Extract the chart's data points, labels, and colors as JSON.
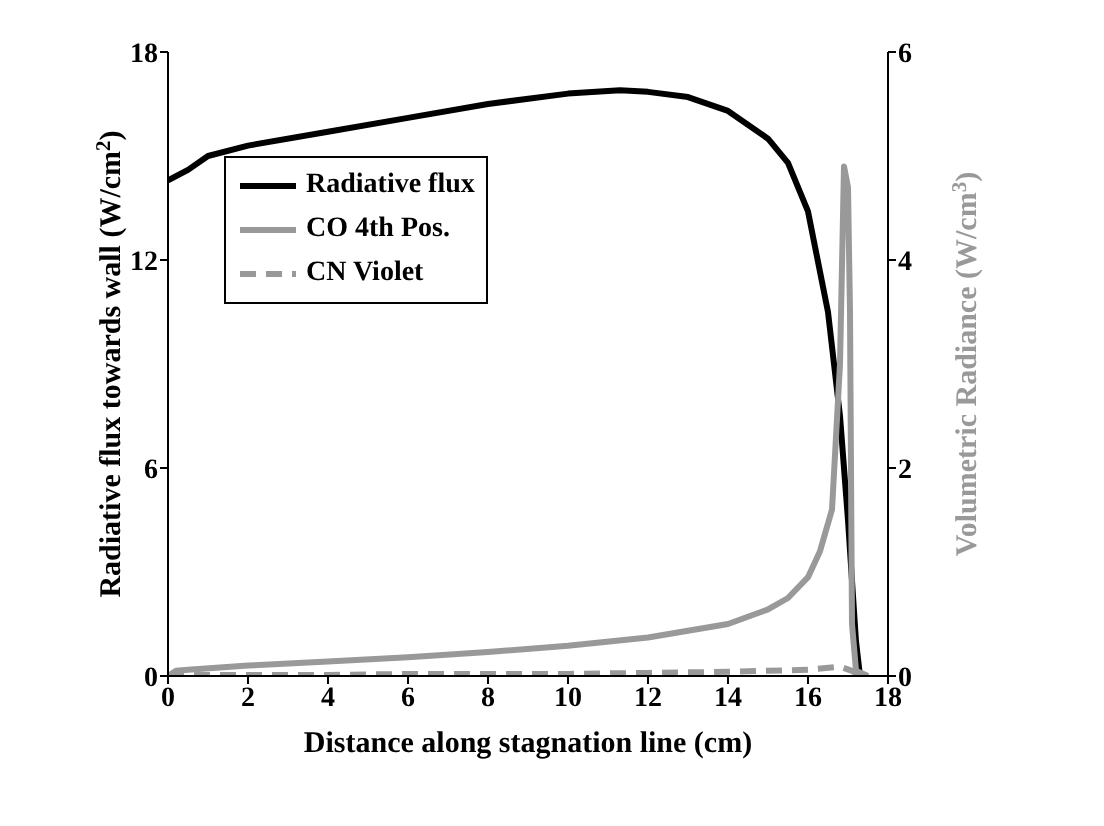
{
  "chart_data": {
    "type": "line",
    "xlabel": "Distance along stagnation line (cm)",
    "ylabel": "Radiative flux towards wall (W/cm$^{2}$)",
    "y2label": "Volumetric Radiance (W/cm$^{3}$)",
    "xlim": [
      0,
      18
    ],
    "xticks": [
      0,
      2,
      4,
      6,
      8,
      10,
      12,
      14,
      16,
      18
    ],
    "ylim": [
      0,
      18
    ],
    "yticks": [
      0,
      6,
      12,
      18
    ],
    "y2lim": [
      0,
      6
    ],
    "y2ticks": [
      0,
      2,
      4,
      6
    ],
    "legend": "top left",
    "grid": false,
    "marker": "none",
    "series": [
      {
        "name": "Radiative flux",
        "color": "#000000",
        "line_style": "solid",
        "x": [
          0,
          0.5,
          1,
          2,
          4,
          6,
          8,
          10,
          11.3,
          12,
          13,
          14,
          15,
          15.5,
          16,
          16.5,
          16.8,
          17,
          17.2,
          17.3
        ],
        "values": [
          14.3,
          14.6,
          15,
          15.3,
          15.7,
          16.1,
          16.5,
          16.8,
          16.9,
          16.85,
          16.7,
          16.3,
          15.5,
          14.8,
          13.4,
          10.5,
          7.5,
          4.5,
          1,
          0
        ]
      },
      {
        "name": "CO 4th Pos.",
        "color": "#999999",
        "line_style": "solid",
        "axis": "y2",
        "x": [
          0,
          0.2,
          0.5,
          2,
          4,
          6,
          8,
          10,
          12,
          14,
          15,
          15.5,
          16,
          16.3,
          16.6,
          16.8,
          16.9,
          17,
          17.05,
          17.1,
          17.2,
          17.5
        ],
        "values": [
          0,
          0.05,
          0.06,
          0.1,
          0.14,
          0.18,
          0.23,
          0.29,
          0.37,
          0.5,
          0.64,
          0.75,
          0.95,
          1.2,
          1.6,
          3,
          4.9,
          4.7,
          3.5,
          0.5,
          0.05,
          0
        ]
      },
      {
        "name": "CN Violet",
        "color": "#999999",
        "line_style": "dashed",
        "axis": "y2",
        "x": [
          0,
          2,
          4,
          6,
          8,
          10,
          12,
          14,
          16,
          16.8,
          17.1,
          17.3
        ],
        "values": [
          0.01,
          0.01,
          0.01,
          0.02,
          0.02,
          0.02,
          0.03,
          0.04,
          0.06,
          0.09,
          0.05,
          0
        ]
      }
    ]
  }
}
